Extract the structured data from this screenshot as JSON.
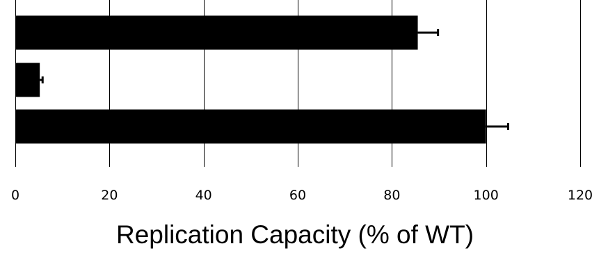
{
  "chart_data": {
    "type": "bar",
    "orientation": "horizontal",
    "categories": [
      "",
      "",
      ""
    ],
    "values": [
      85.5,
      5.2,
      100
    ],
    "errors": [
      4.3,
      0.6,
      4.7
    ],
    "title": "",
    "xlabel": "Replication Capacity (% of WT)",
    "ylabel": "",
    "xlim": [
      0,
      120
    ],
    "xticks": [
      0,
      20,
      40,
      60,
      80,
      100,
      120
    ],
    "xtick_labels": [
      "0",
      "20",
      "40",
      "60",
      "80",
      "100",
      "120"
    ],
    "grid": "vertical",
    "legend": "none",
    "bar_color": "#000000",
    "grid_color": "#000000"
  }
}
